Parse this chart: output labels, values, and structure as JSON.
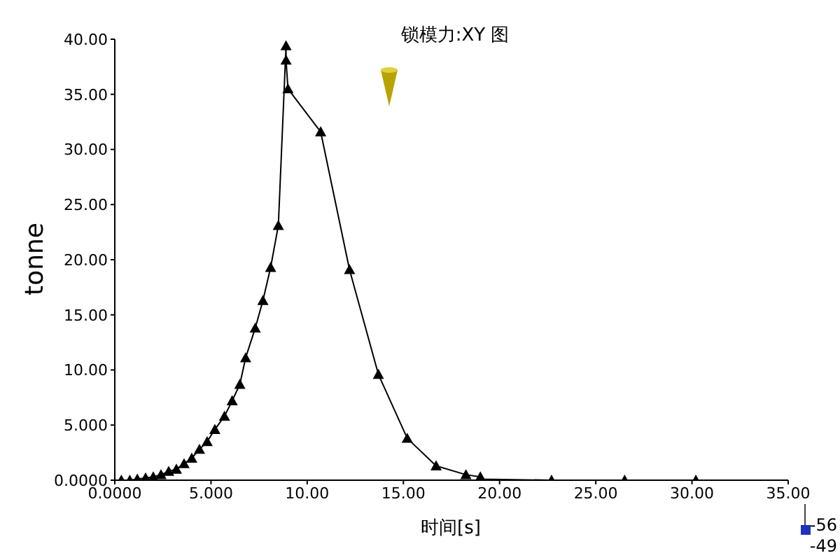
{
  "chart_data": {
    "type": "line",
    "title": "锁模力:XY 图",
    "xlabel": "时间[s]",
    "ylabel": "tonne",
    "series": [
      {
        "color": "#000000",
        "x": [
          0.34,
          0.78,
          1.17,
          1.6,
          2.0,
          2.4,
          2.8,
          3.2,
          3.6,
          4.0,
          4.4,
          4.8,
          5.2,
          5.7,
          6.1,
          6.5,
          6.8,
          7.3,
          7.7,
          8.1,
          8.5,
          8.9,
          8.9,
          9.0,
          10.7,
          12.2,
          13.7,
          15.2,
          16.7,
          18.25,
          19.0,
          19.0,
          22.7,
          26.5,
          30.2
        ],
        "values": [
          0,
          0,
          0.1,
          0.2,
          0.3,
          0.5,
          0.8,
          1.0,
          1.5,
          2.0,
          2.8,
          3.5,
          4.6,
          5.8,
          7.2,
          8.7,
          11.1,
          13.8,
          16.3,
          19.3,
          23.1,
          39.4,
          38.1,
          35.5,
          31.6,
          19.1,
          9.6,
          3.8,
          1.3,
          0.5,
          0.3,
          0.1,
          0,
          0,
          0
        ]
      }
    ],
    "xlim": [
      0,
      35
    ],
    "xticks": [
      {
        "value": 0,
        "label": "0.0000"
      },
      {
        "value": 5,
        "label": "5.000"
      },
      {
        "value": 10,
        "label": "10.00"
      },
      {
        "value": 15,
        "label": "15.00"
      },
      {
        "value": 20,
        "label": "20.00"
      },
      {
        "value": 25,
        "label": "25.00"
      },
      {
        "value": 30,
        "label": "30.00"
      },
      {
        "value": 35,
        "label": "35.00"
      }
    ],
    "ylim": [
      0,
      40
    ],
    "yticks": [
      {
        "value": 0,
        "label": "0.0000"
      },
      {
        "value": 5,
        "label": "5.000"
      },
      {
        "value": 10,
        "label": "10.00"
      },
      {
        "value": 15,
        "label": "15.00"
      },
      {
        "value": 20,
        "label": "20.00"
      },
      {
        "value": 25,
        "label": "25.00"
      },
      {
        "value": 30,
        "label": "30.00"
      },
      {
        "value": 35,
        "label": "35.00"
      },
      {
        "value": 40,
        "label": "40.00"
      }
    ],
    "annotations": [
      "-56",
      "-49"
    ],
    "grid": false,
    "legend": false,
    "marker": "triangle",
    "line_style": "solid"
  }
}
